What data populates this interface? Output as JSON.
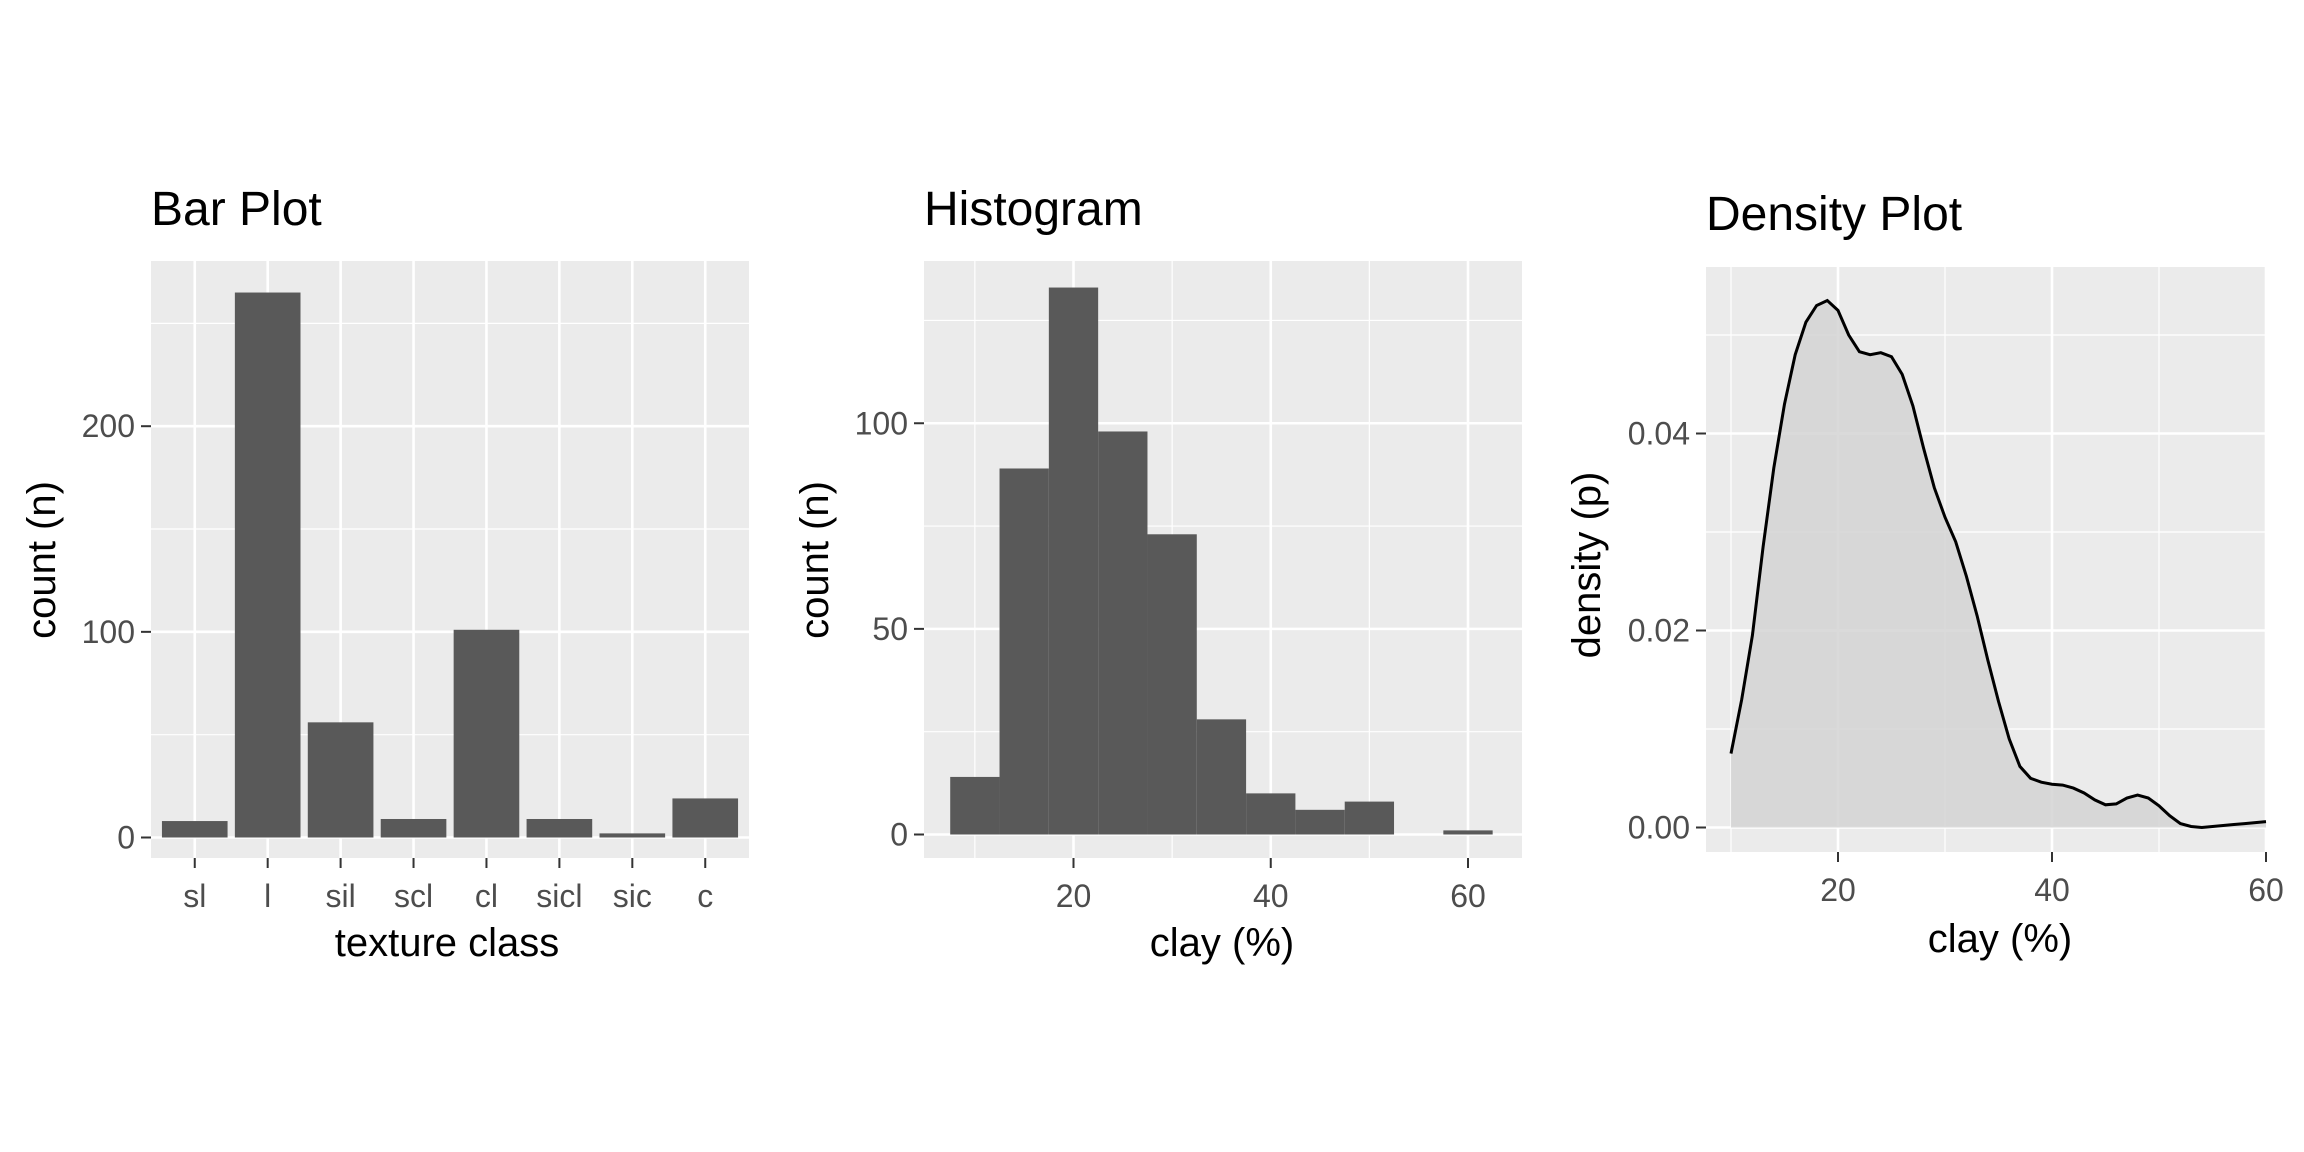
{
  "chart_data": [
    {
      "type": "bar",
      "title": "Bar Plot",
      "xlabel": "texture class",
      "ylabel": "count (n)",
      "categories": [
        "sl",
        "l",
        "sil",
        "scl",
        "cl",
        "sicl",
        "sic",
        "c"
      ],
      "values": [
        8,
        265,
        56,
        9,
        101,
        9,
        2,
        19
      ],
      "ylim": [
        0,
        280
      ],
      "yticks": [
        0,
        100,
        200
      ],
      "grid": true
    },
    {
      "type": "bar",
      "subtype": "histogram",
      "title": "Histogram",
      "xlabel": "clay (%)",
      "ylabel": "count (n)",
      "bin_width": 5,
      "bins": [
        {
          "x": 10,
          "count": 14
        },
        {
          "x": 15,
          "count": 89
        },
        {
          "x": 20,
          "count": 133
        },
        {
          "x": 25,
          "count": 98
        },
        {
          "x": 30,
          "count": 73
        },
        {
          "x": 35,
          "count": 28
        },
        {
          "x": 40,
          "count": 10
        },
        {
          "x": 45,
          "count": 6
        },
        {
          "x": 50,
          "count": 8
        },
        {
          "x": 55,
          "count": 0
        },
        {
          "x": 60,
          "count": 1
        }
      ],
      "xlim": [
        5,
        65
      ],
      "ylim": [
        0,
        140
      ],
      "xticks": [
        20,
        40,
        60
      ],
      "yticks": [
        0,
        50,
        100
      ],
      "grid": true
    },
    {
      "type": "area",
      "subtype": "density",
      "title": "Density Plot",
      "xlabel": "clay (%)",
      "ylabel": "density (p)",
      "x": [
        10,
        11,
        12,
        13,
        14,
        15,
        16,
        17,
        18,
        19,
        20,
        21,
        22,
        23,
        24,
        25,
        26,
        27,
        28,
        29,
        30,
        31,
        32,
        33,
        34,
        35,
        36,
        37,
        38,
        39,
        40,
        41,
        42,
        43,
        44,
        45,
        46,
        47,
        48,
        49,
        50,
        51,
        52,
        53,
        54,
        55,
        56,
        57,
        58,
        59,
        60
      ],
      "y": [
        0.0075,
        0.013,
        0.0195,
        0.0285,
        0.0365,
        0.043,
        0.048,
        0.0513,
        0.053,
        0.0535,
        0.0525,
        0.05,
        0.0483,
        0.048,
        0.0482,
        0.0478,
        0.046,
        0.0428,
        0.0385,
        0.0345,
        0.0315,
        0.029,
        0.0255,
        0.0215,
        0.017,
        0.0128,
        0.009,
        0.0062,
        0.005,
        0.0046,
        0.0044,
        0.0043,
        0.004,
        0.0035,
        0.0028,
        0.0023,
        0.0024,
        0.003,
        0.0033,
        0.003,
        0.0022,
        0.0012,
        0.0004,
        0.0001,
        0.0,
        0.0001,
        0.0002,
        0.0003,
        0.0004,
        0.0005,
        0.0006
      ],
      "xlim": [
        7.5,
        61
      ],
      "ylim": [
        -0.0025,
        0.0565
      ],
      "xticks": [
        20,
        40,
        60
      ],
      "yticks": [
        0.0,
        0.02,
        0.04
      ],
      "ytick_labels": [
        "0.00",
        "0.02",
        "0.04"
      ],
      "fill_color": "#d3d3d3",
      "line_color": "#000000",
      "grid": true
    }
  ],
  "colors": {
    "panel_background": "#ebebeb",
    "grid_major": "#ffffff",
    "bar_fill": "#595959",
    "tick_label": "#4d4d4d",
    "tick_mark": "#333333"
  }
}
